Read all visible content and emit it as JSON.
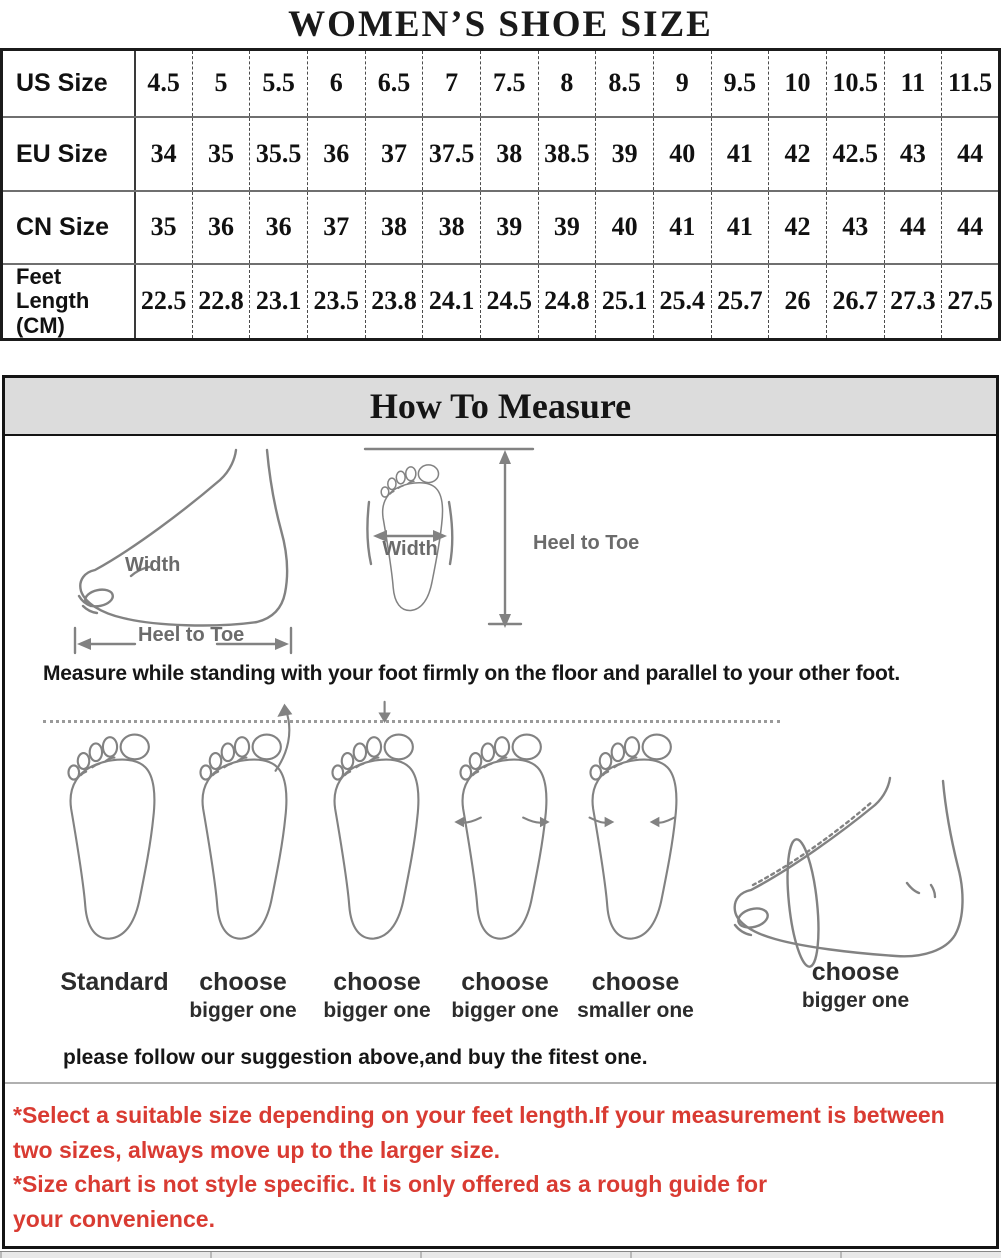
{
  "title": "WOMEN’S SHOE SIZE",
  "size_table": {
    "rows": [
      {
        "label": "US  Size",
        "values": [
          "4.5",
          "5",
          "5.5",
          "6",
          "6.5",
          "7",
          "7.5",
          "8",
          "8.5",
          "9",
          "9.5",
          "10",
          "10.5",
          "11",
          "11.5"
        ]
      },
      {
        "label": "EU Size",
        "values": [
          "34",
          "35",
          "35.5",
          "36",
          "37",
          "37.5",
          "38",
          "38.5",
          "39",
          "40",
          "41",
          "42",
          "42.5",
          "43",
          "44"
        ]
      },
      {
        "label": "CN Size",
        "values": [
          "35",
          "36",
          "36",
          "37",
          "38",
          "38",
          "39",
          "39",
          "40",
          "41",
          "41",
          "42",
          "43",
          "44",
          "44"
        ]
      },
      {
        "label": "Feet\nLength (CM)",
        "values": [
          "22.5",
          "22.8",
          "23.1",
          "23.5",
          "23.8",
          "24.1",
          "24.5",
          "24.8",
          "25.1",
          "25.4",
          "25.7",
          "26",
          "26.7",
          "27.3",
          "27.5"
        ]
      }
    ]
  },
  "measure": {
    "heading": "How To Measure",
    "diagram_side": {
      "width_label": "Width",
      "heel_label": "Heel to Toe"
    },
    "diagram_sole": {
      "width_label": "Width",
      "heel_label": "Heel to Toe"
    },
    "instruction": "Measure while standing with your foot firmly on the floor and parallel to your other foot.",
    "feet": [
      {
        "label": "Standard",
        "sub": ""
      },
      {
        "label": "choose",
        "sub": "bigger one"
      },
      {
        "label": "choose",
        "sub": "bigger one"
      },
      {
        "label": "choose",
        "sub": "bigger one"
      },
      {
        "label": "choose",
        "sub": "smaller one"
      },
      {
        "label": "choose",
        "sub": "bigger one"
      }
    ],
    "suggestion": "please follow our suggestion above,and buy the fitest one."
  },
  "notes": [
    "*Select a suitable size depending on your feet length.If your measurement is between two sizes, always move up to the larger size.",
    "*Size chart is not style specific. It is only offered as a rough guide for your convenience."
  ],
  "colors": {
    "note_red": "#d93b32",
    "header_bg": "#dcdcdc",
    "lineart_gray": "#828282"
  }
}
